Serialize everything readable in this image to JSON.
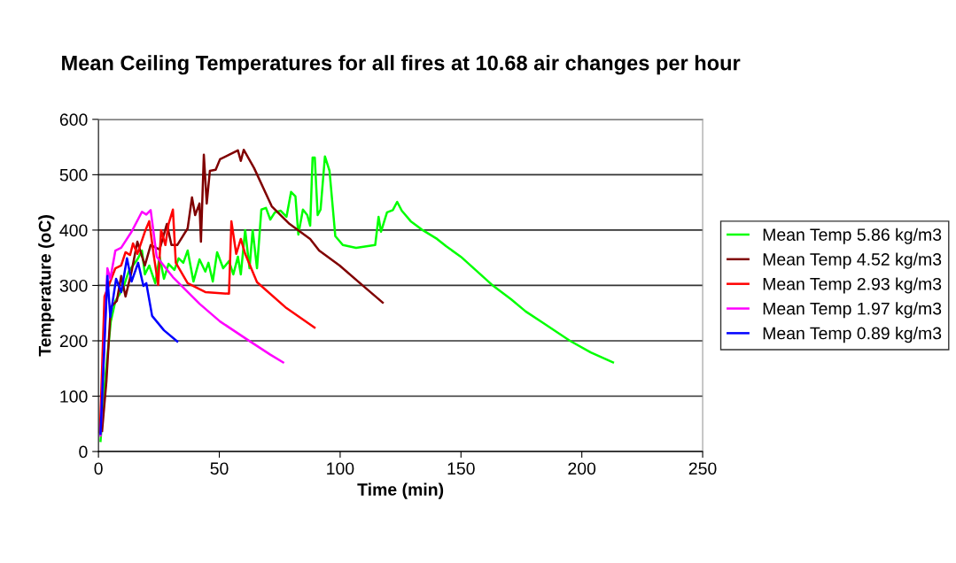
{
  "chart_data": {
    "type": "line",
    "title": "Mean Ceiling Temperatures for all fires at 10.68 air changes per hour",
    "xlabel": "Time (min)",
    "ylabel": "Temperature (oC)",
    "xlim": [
      0,
      250
    ],
    "xticks": [
      0,
      50,
      100,
      150,
      200,
      250
    ],
    "ylim": [
      0,
      600
    ],
    "yticks": [
      0,
      100,
      200,
      300,
      400,
      500,
      600
    ],
    "grid": "y",
    "legend": "right",
    "marker": "none",
    "line_style": "solid",
    "series": [
      {
        "name": "Mean Temp 5.86 kg/m3",
        "color": "#00ff00",
        "x": [
          0.85,
          2.7,
          5.1,
          7,
          10,
          12.5,
          16.1,
          18,
          19.2,
          21,
          23.5,
          25.3,
          27.1,
          29,
          31.4,
          33.2,
          35.1,
          36.9,
          39.3,
          41.8,
          44.2,
          45.5,
          47.3,
          49.1,
          51.6,
          54,
          55.8,
          57.7,
          58.9,
          60.7,
          62.5,
          63.8,
          65.6,
          67.4,
          69.3,
          71.1,
          73,
          75.4,
          77.8,
          79.7,
          81.5,
          82.7,
          84.6,
          86.4,
          87.6,
          88.6,
          89.5,
          90.7,
          91.9,
          93.7,
          95.6,
          98,
          101.1,
          106.6,
          114.5,
          115.9,
          116.9,
          119.4,
          121.8,
          123.6,
          125.5,
          129.2,
          134.1,
          140.1,
          143.8,
          149.9,
          156,
          163.4,
          170.7,
          176.8,
          184.1,
          195.1,
          203.7,
          212.9
        ],
        "values": [
          19,
          128,
          235,
          272,
          293,
          325,
          347,
          363,
          320,
          336,
          304,
          352,
          312,
          339,
          328,
          349,
          341,
          363,
          307,
          347,
          325,
          341,
          307,
          360,
          331,
          344,
          320,
          352,
          320,
          400,
          331,
          400,
          331,
          437,
          440,
          419,
          432,
          435,
          424,
          469,
          461,
          392,
          437,
          427,
          408,
          531,
          531,
          427,
          437,
          533,
          507,
          389,
          373,
          368,
          373,
          424,
          397,
          432,
          436,
          451,
          435,
          416,
          400,
          384,
          371,
          352,
          328,
          299,
          275,
          253,
          232,
          200,
          179,
          161
        ]
      },
      {
        "name": "Mean Temp 4.52 kg/m3",
        "color": "#800000",
        "x": [
          1.5,
          3.3,
          5.1,
          7.6,
          9.4,
          11.2,
          13.7,
          16.1,
          19.2,
          21.6,
          25.3,
          28.3,
          30.2,
          32.6,
          36.9,
          38.7,
          40,
          41.8,
          42.4,
          43.6,
          44.8,
          46.1,
          48.5,
          50.3,
          54,
          57.7,
          58.9,
          60.1,
          64.4,
          71.7,
          79.1,
          87.6,
          91.3,
          99.8,
          109.6,
          117.6
        ],
        "values": [
          37,
          128,
          261,
          272,
          317,
          280,
          325,
          379,
          336,
          373,
          365,
          411,
          373,
          373,
          403,
          459,
          427,
          448,
          379,
          536,
          448,
          507,
          509,
          528,
          536,
          544,
          525,
          545,
          512,
          443,
          411,
          384,
          363,
          336,
          299,
          269
        ]
      },
      {
        "name": "Mean Temp 2.93 kg/m3",
        "color": "#ff0000",
        "x": [
          0.6,
          2.5,
          7,
          9.4,
          11.2,
          13.1,
          14.3,
          16.1,
          19.2,
          21,
          22.8,
          24.7,
          25.9,
          27.7,
          29,
          30.8,
          32,
          36.9,
          44.2,
          54,
          55,
          57,
          58.9,
          60.7,
          65.6,
          77.8,
          89.4
        ],
        "values": [
          35,
          280,
          331,
          336,
          360,
          355,
          376,
          357,
          397,
          416,
          357,
          301,
          400,
          373,
          411,
          437,
          341,
          304,
          288,
          285,
          416,
          357,
          384,
          357,
          306,
          259,
          224
        ]
      },
      {
        "name": "Mean Temp 1.97 kg/m3",
        "color": "#ff00ff",
        "x": [
          0.85,
          3.7,
          4.9,
          7,
          9.4,
          13.7,
          18,
          19.8,
          21.6,
          22.2,
          24.1,
          30.8,
          41.8,
          50.3,
          61.3,
          71.1,
          76.4
        ],
        "values": [
          29,
          331,
          312,
          363,
          368,
          397,
          433,
          428,
          436,
          416,
          352,
          315,
          267,
          235,
          203,
          175,
          161
        ]
      },
      {
        "name": "Mean Temp 0.89 kg/m3",
        "color": "#0000ff",
        "x": [
          0.85,
          3.7,
          4.9,
          7.3,
          9.4,
          11.8,
          13.7,
          16.4,
          18.6,
          19.8,
          22.2,
          27.1,
          32.6
        ],
        "values": [
          32,
          317,
          243,
          312,
          288,
          349,
          307,
          341,
          299,
          304,
          245,
          219,
          199
        ]
      }
    ]
  }
}
